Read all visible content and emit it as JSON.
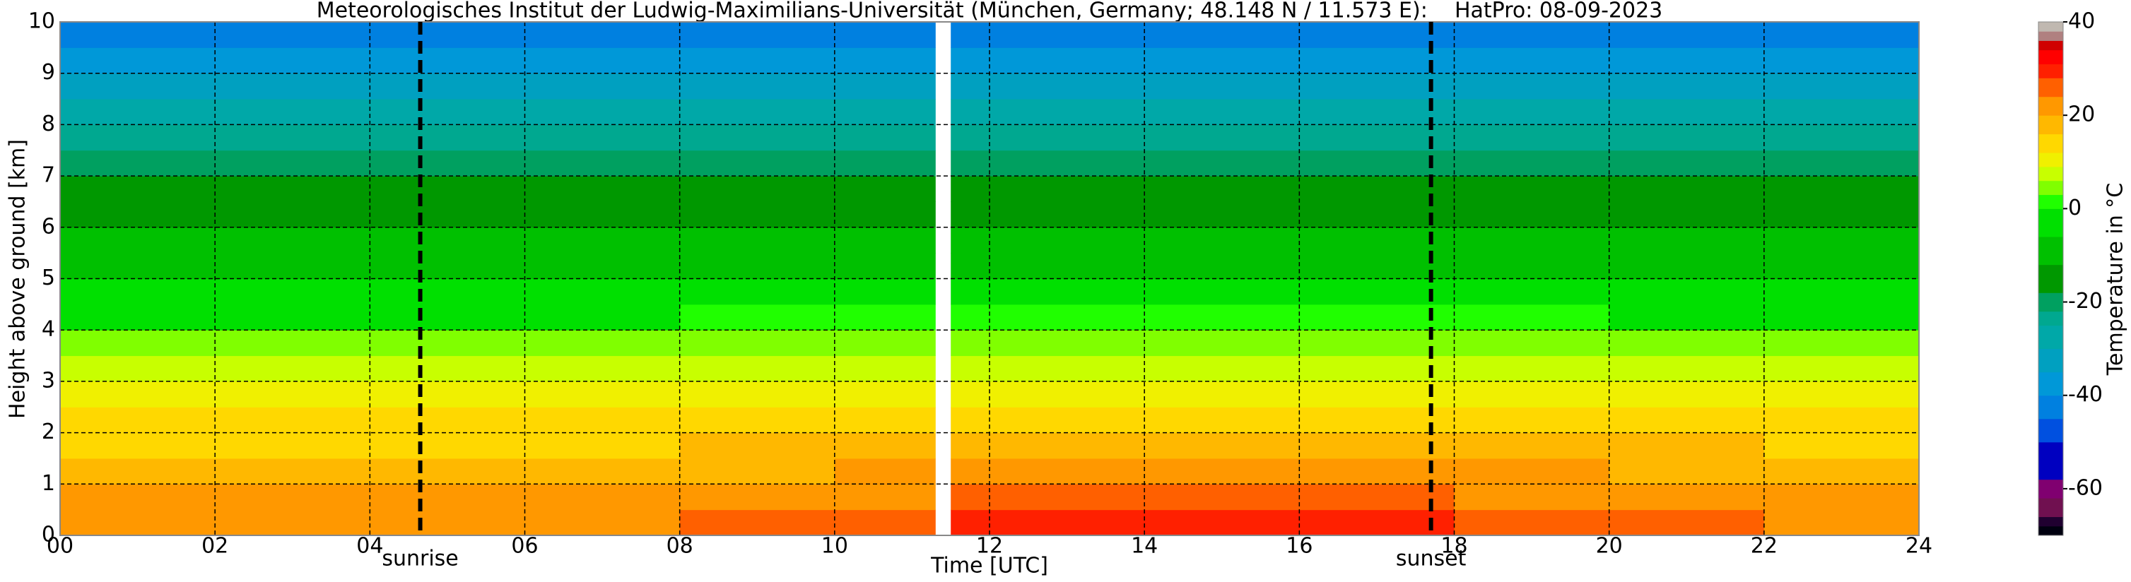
{
  "chart_data": {
    "type": "heatmap",
    "title": "Meteorologisches Institut der Ludwig-Maximilians-Universität (München, Germany; 48.148 N / 11.573 E):    HatPro: 08-09-2023",
    "x_label": "Time [UTC]",
    "y_label": "Height above ground [km]",
    "colorbar_label": "Temperature in °C",
    "x": [
      0,
      2,
      4,
      6,
      8,
      10,
      11.3,
      11.5,
      12,
      14,
      16,
      18,
      20,
      22,
      24
    ],
    "y": [
      0,
      0.5,
      1,
      1.5,
      2,
      2.5,
      3,
      3.5,
      4,
      4.5,
      5,
      5.5,
      6,
      6.5,
      7,
      7.5,
      8,
      8.5,
      9,
      9.5,
      10
    ],
    "values": [
      [
        23,
        22,
        22,
        23,
        24,
        26,
        null,
        28,
        30,
        30,
        28,
        25,
        24,
        23
      ],
      [
        21,
        21,
        20,
        21,
        22,
        23,
        null,
        26,
        27,
        27,
        26,
        23,
        22,
        21
      ],
      [
        18,
        18,
        18,
        18,
        19,
        20,
        null,
        21,
        22,
        22,
        21,
        20,
        19,
        18
      ],
      [
        15,
        15,
        15,
        15,
        16,
        16,
        null,
        17,
        17,
        18,
        17,
        16,
        16,
        15
      ],
      [
        12,
        12,
        12,
        12,
        13,
        13,
        null,
        13,
        14,
        14,
        14,
        13,
        13,
        12
      ],
      [
        10,
        10,
        10,
        10,
        10,
        10,
        null,
        10,
        11,
        11,
        11,
        10,
        10,
        10
      ],
      [
        7,
        7,
        7,
        7,
        7,
        7,
        null,
        7,
        8,
        8,
        8,
        7,
        7,
        7
      ],
      [
        4,
        4,
        4,
        4,
        4,
        4,
        null,
        5,
        5,
        5,
        5,
        4,
        4,
        4
      ],
      [
        -1,
        -1,
        -1,
        -1,
        0,
        0,
        null,
        0,
        1,
        1,
        1,
        0,
        -1,
        -1
      ],
      [
        -4,
        -4,
        -4,
        -4,
        -4,
        -4,
        null,
        -3,
        -3,
        -3,
        -3,
        -4,
        -4,
        -4
      ],
      [
        -8,
        -8,
        -8,
        -8,
        -8,
        -8,
        null,
        -7,
        -7,
        -7,
        -7,
        -8,
        -8,
        -8
      ],
      [
        -11,
        -11,
        -11,
        -11,
        -11,
        -11,
        null,
        -11,
        -10,
        -10,
        -10,
        -11,
        -11,
        -11
      ],
      [
        -14,
        -14,
        -14,
        -14,
        -14,
        -14,
        null,
        -14,
        -13,
        -13,
        -13,
        -14,
        -14,
        -14
      ],
      [
        -17,
        -17,
        -17,
        -17,
        -17,
        -17,
        null,
        -17,
        -17,
        -17,
        -17,
        -17,
        -17,
        -17
      ],
      [
        -21,
        -21,
        -21,
        -21,
        -21,
        -21,
        null,
        -21,
        -21,
        -21,
        -21,
        -21,
        -21,
        -21
      ],
      [
        -25,
        -25,
        -25,
        -25,
        -25,
        -25,
        null,
        -25,
        -25,
        -25,
        -25,
        -25,
        -25,
        -25
      ],
      [
        -29,
        -29,
        -29,
        -29,
        -29,
        -29,
        null,
        -29,
        -29,
        -29,
        -29,
        -29,
        -29,
        -29
      ],
      [
        -33,
        -33,
        -33,
        -33,
        -33,
        -33,
        null,
        -33,
        -33,
        -33,
        -33,
        -33,
        -33,
        -33
      ],
      [
        -38,
        -38,
        -38,
        -38,
        -38,
        -38,
        null,
        -38,
        -38,
        -38,
        -38,
        -38,
        -38,
        -38
      ],
      [
        -45,
        -45,
        -45,
        -45,
        -45,
        -45,
        null,
        -45,
        -45,
        -45,
        -45,
        -45,
        -45,
        -45
      ]
    ],
    "xlim": [
      0,
      24
    ],
    "ylim": [
      0,
      10
    ],
    "xticks": [
      {
        "value": 0,
        "label": "00"
      },
      {
        "value": 2,
        "label": "02"
      },
      {
        "value": 4,
        "label": "04"
      },
      {
        "value": 6,
        "label": "06"
      },
      {
        "value": 8,
        "label": "08"
      },
      {
        "value": 10,
        "label": "10"
      },
      {
        "value": 12,
        "label": "12"
      },
      {
        "value": 14,
        "label": "14"
      },
      {
        "value": 16,
        "label": "16"
      },
      {
        "value": 18,
        "label": "18"
      },
      {
        "value": 20,
        "label": "20"
      },
      {
        "value": 22,
        "label": "22"
      },
      {
        "value": 24,
        "label": "24"
      }
    ],
    "yticks": [
      0,
      1,
      2,
      3,
      4,
      5,
      6,
      7,
      8,
      9,
      10
    ],
    "grid": true,
    "clim": [
      -70,
      40
    ],
    "cticks": [
      -60,
      -40,
      -20,
      0,
      20,
      40
    ],
    "colorscale": [
      {
        "value": -70,
        "color": "#000010"
      },
      {
        "value": -68,
        "color": "#200030"
      },
      {
        "value": -66,
        "color": "#701050"
      },
      {
        "value": -62,
        "color": "#800070"
      },
      {
        "value": -58,
        "color": "#0000c0"
      },
      {
        "value": -50,
        "color": "#0050e0"
      },
      {
        "value": -45,
        "color": "#0080e0"
      },
      {
        "value": -40,
        "color": "#0098d8"
      },
      {
        "value": -35,
        "color": "#00a0c0"
      },
      {
        "value": -30,
        "color": "#00a8a8"
      },
      {
        "value": -25,
        "color": "#00a890"
      },
      {
        "value": -22,
        "color": "#00a060"
      },
      {
        "value": -18,
        "color": "#009800"
      },
      {
        "value": -12,
        "color": "#00c000"
      },
      {
        "value": -6,
        "color": "#00e000"
      },
      {
        "value": 0,
        "color": "#20ff00"
      },
      {
        "value": 3,
        "color": "#80ff00"
      },
      {
        "value": 6,
        "color": "#c8ff00"
      },
      {
        "value": 9,
        "color": "#f0f000"
      },
      {
        "value": 12,
        "color": "#ffd800"
      },
      {
        "value": 16,
        "color": "#ffb800"
      },
      {
        "value": 20,
        "color": "#ff9800"
      },
      {
        "value": 24,
        "color": "#ff6000"
      },
      {
        "value": 28,
        "color": "#ff2000"
      },
      {
        "value": 31,
        "color": "#ff0000"
      },
      {
        "value": 34,
        "color": "#d00000"
      },
      {
        "value": 36,
        "color": "#b08080"
      },
      {
        "value": 38,
        "color": "#c0b8b0"
      }
    ],
    "annotations": [
      {
        "label": "sunrise",
        "x": 4.65
      },
      {
        "label": "sunset",
        "x": 17.7
      }
    ]
  }
}
